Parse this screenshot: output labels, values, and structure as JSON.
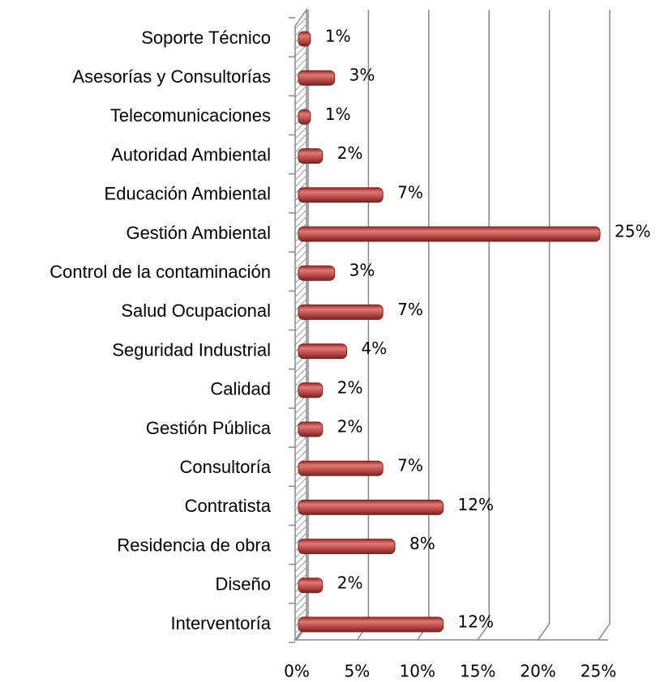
{
  "chart_data": {
    "type": "bar",
    "orientation": "horizontal",
    "categories": [
      "Soporte Técnico",
      "Asesorías y Consultorías",
      "Telecomunicaciones",
      "Autoridad Ambiental",
      "Educación Ambiental",
      "Gestión Ambiental",
      "Control de la contaminación",
      "Salud Ocupacional",
      "Seguridad Industrial",
      "Calidad",
      "Gestión Pública",
      "Consultoría",
      "Contratista",
      "Residencia de obra",
      "Diseño",
      "Interventoría"
    ],
    "values": [
      1,
      3,
      1,
      2,
      7,
      25,
      3,
      7,
      4,
      2,
      2,
      7,
      12,
      8,
      2,
      12
    ],
    "value_labels": [
      "1%",
      "3%",
      "1%",
      "2%",
      "7%",
      "25%",
      "3%",
      "7%",
      "4%",
      "2%",
      "2%",
      "7%",
      "12%",
      "8%",
      "2%",
      "12%"
    ],
    "color": "#c0504d",
    "xlim": [
      0,
      25
    ],
    "xticks": [
      {
        "value": 0,
        "label": "0%"
      },
      {
        "value": 5,
        "label": "5%"
      },
      {
        "value": 10,
        "label": "10%"
      },
      {
        "value": 15,
        "label": "15%"
      },
      {
        "value": 20,
        "label": "20%"
      },
      {
        "value": 25,
        "label": "25%"
      }
    ],
    "grid": true
  }
}
